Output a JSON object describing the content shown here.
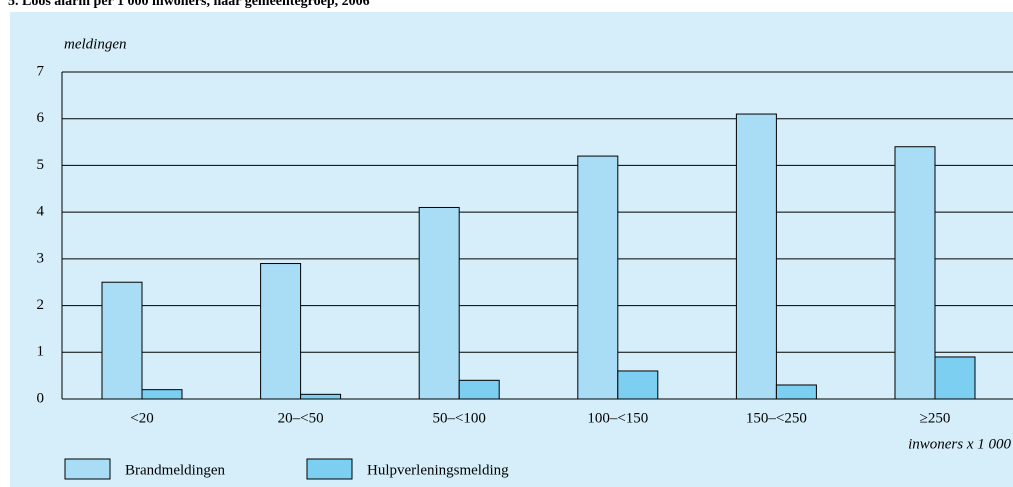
{
  "chart_data": {
    "type": "bar",
    "title": "5. Loos alarm per 1 000 inwoners, naar gemeentegroep, 2006",
    "y_label": "meldingen",
    "x_label": "inwoners x 1 000",
    "categories": [
      "<20",
      "20–<50",
      "50–<100",
      "100–<150",
      "150–<250",
      "≥250"
    ],
    "series": [
      {
        "name": "Brandmeldingen",
        "color": "#a9ddf6",
        "values": [
          2.5,
          2.9,
          4.1,
          5.2,
          6.1,
          5.4
        ]
      },
      {
        "name": "Hulpverleningsmelding",
        "color": "#7ccff1",
        "values": [
          0.2,
          0.1,
          0.4,
          0.6,
          0.3,
          0.9
        ]
      }
    ],
    "ylim": [
      0,
      7
    ],
    "yticks": [
      0,
      1,
      2,
      3,
      4,
      5,
      6,
      7
    ],
    "grid": true
  }
}
